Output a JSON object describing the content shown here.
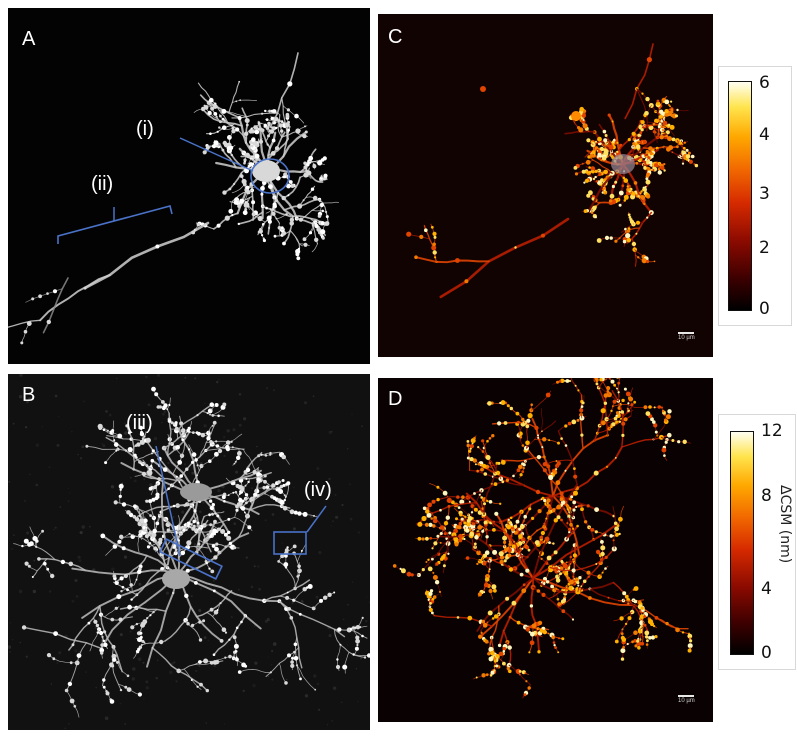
{
  "panels": {
    "A": {
      "label": "A",
      "annotations": {
        "i": "(i)",
        "ii": "(ii)"
      }
    },
    "B": {
      "label": "B",
      "annotations": {
        "iii": "(iii)",
        "iv": "(iv)"
      }
    },
    "C": {
      "label": "C",
      "scalebar": "10 µm"
    },
    "D": {
      "label": "D",
      "scalebar": "10 µm"
    }
  },
  "colorbars": {
    "top": {
      "ticks": [
        "6",
        "4",
        "3",
        "2",
        "0"
      ]
    },
    "bottom": {
      "ticks": [
        "12",
        "8",
        "4",
        "0"
      ],
      "ylabel": "ΔCSM (nm)"
    }
  },
  "colors": {
    "annotation_blue": "#4a72c8",
    "panel_bg": "#000000",
    "heat_bg": "#120303"
  }
}
